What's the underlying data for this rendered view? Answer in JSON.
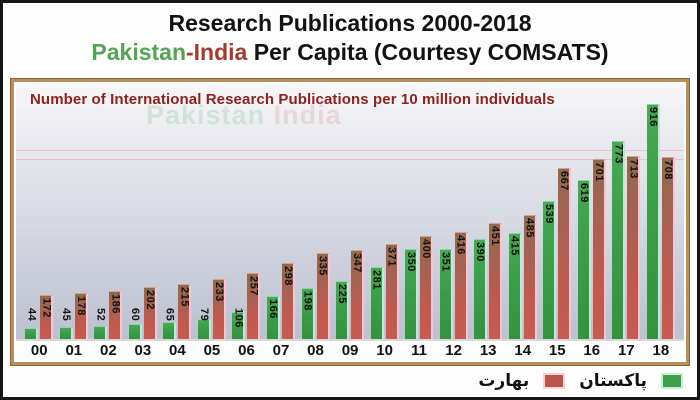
{
  "header": {
    "title": "Research Publications 2000-2018",
    "subtitle_pakistan": "Pakistan",
    "subtitle_dash": "-",
    "subtitle_india": "India",
    "subtitle_rest": " Per Capita (Courtesy COMSATS)"
  },
  "colors": {
    "pakistan_bar": "#3da04c",
    "india_bar": "#c0584e",
    "title_green": "#55a455",
    "title_red": "#a33c30",
    "chart_subtitle": "#8b241e",
    "frame_border": "#b78e5c"
  },
  "chart_data": {
    "type": "bar",
    "title": "Research Publications 2000-2018 Pakistan-India Per Capita (Courtesy COMSATS)",
    "title_inside": "Number of International Research Publications per 10 million individuals",
    "categories": [
      "00",
      "01",
      "02",
      "03",
      "04",
      "05",
      "06",
      "07",
      "08",
      "09",
      "10",
      "11",
      "12",
      "13",
      "14",
      "15",
      "16",
      "17",
      "18"
    ],
    "series": [
      {
        "name": "پاکستان",
        "name_en": "Pakistan",
        "color": "#3da04c",
        "values": [
          44,
          45,
          52,
          60,
          65,
          79,
          106,
          166,
          198,
          225,
          281,
          350,
          351,
          390,
          415,
          539,
          619,
          773,
          916
        ]
      },
      {
        "name": "بھارت",
        "name_en": "India",
        "color": "#c0584e",
        "values": [
          172,
          178,
          186,
          202,
          215,
          233,
          257,
          298,
          335,
          347,
          371,
          400,
          416,
          451,
          485,
          667,
          701,
          713,
          708
        ]
      }
    ],
    "ylim": [
      0,
      950
    ],
    "grid": "off",
    "legend_position": "bottom-right",
    "bar_value_labels": "rotated 90° on top of each bar"
  },
  "legend": {
    "india_label": "بھارت",
    "pakistan_label": "پاکستان"
  }
}
